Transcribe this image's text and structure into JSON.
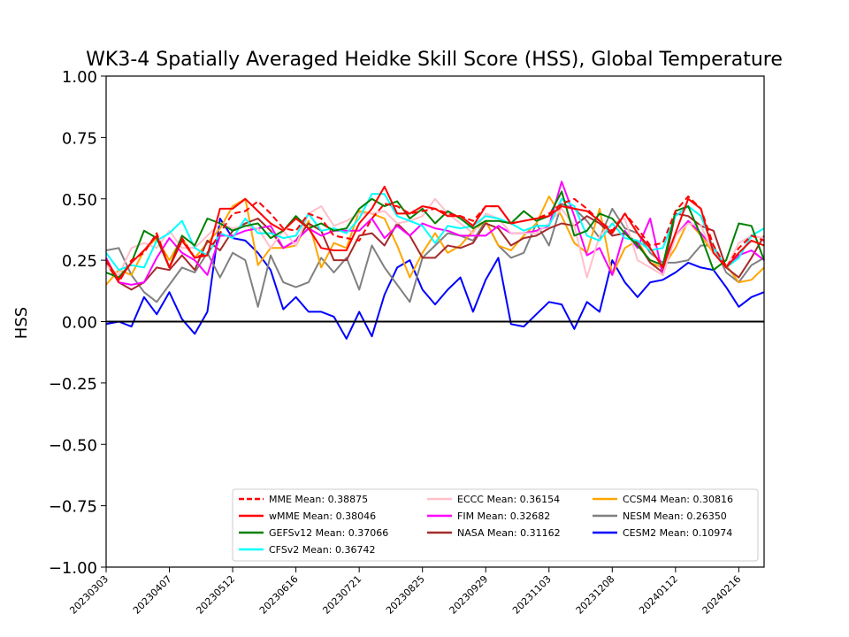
{
  "chart_data": {
    "type": "line",
    "title": "WK3-4 Spatially Averaged Heidke Skill Score (HSS), Global Temperature",
    "xlabel": "",
    "ylabel": "HSS",
    "ylim": [
      -1.0,
      1.0
    ],
    "yticks": [
      "1.00",
      "0.75",
      "0.50",
      "0.25",
      "0.00",
      "−0.25",
      "−0.50",
      "−0.75",
      "−1.00"
    ],
    "ytick_values": [
      1.0,
      0.75,
      0.5,
      0.25,
      0.0,
      -0.25,
      -0.5,
      -0.75,
      -1.0
    ],
    "xtick_labels": [
      "20230303",
      "20230407",
      "20230512",
      "20230616",
      "20230721",
      "20230825",
      "20230929",
      "20231103",
      "20231208",
      "20240112",
      "20240216"
    ],
    "xtick_index": [
      0,
      5,
      10,
      15,
      20,
      25,
      30,
      35,
      40,
      45,
      50
    ],
    "n_points": 53,
    "legend_location": "lower right",
    "legend_columns": 3,
    "grid": false,
    "series": [
      {
        "name": "MME Mean: 0.38875",
        "color": "#ff0000",
        "dashed": true,
        "width": 2,
        "values": [
          0.25,
          0.16,
          0.25,
          0.28,
          0.36,
          0.22,
          0.34,
          0.26,
          0.28,
          0.36,
          0.44,
          0.45,
          0.49,
          0.44,
          0.38,
          0.37,
          0.44,
          0.42,
          0.35,
          0.34,
          0.33,
          0.42,
          0.48,
          0.47,
          0.44,
          0.45,
          0.46,
          0.44,
          0.43,
          0.41,
          0.47,
          0.47,
          0.4,
          0.41,
          0.42,
          0.44,
          0.48,
          0.5,
          0.46,
          0.41,
          0.37,
          0.44,
          0.38,
          0.31,
          0.32,
          0.45,
          0.51,
          0.46,
          0.31,
          0.22,
          0.3,
          0.35,
          0.33
        ]
      },
      {
        "name": "wMME Mean: 0.38046",
        "color": "#ff0000",
        "dashed": false,
        "width": 2,
        "values": [
          0.25,
          0.17,
          0.24,
          0.29,
          0.35,
          0.22,
          0.33,
          0.26,
          0.27,
          0.46,
          0.46,
          0.5,
          0.45,
          0.4,
          0.37,
          0.42,
          0.38,
          0.3,
          0.29,
          0.29,
          0.4,
          0.46,
          0.55,
          0.44,
          0.44,
          0.47,
          0.46,
          0.43,
          0.43,
          0.39,
          0.47,
          0.47,
          0.4,
          0.41,
          0.42,
          0.43,
          0.47,
          0.46,
          0.45,
          0.41,
          0.36,
          0.44,
          0.36,
          0.3,
          0.22,
          0.36,
          0.5,
          0.46,
          0.28,
          0.22,
          0.28,
          0.33,
          0.31
        ]
      },
      {
        "name": "GEFSv12 Mean: 0.37066",
        "color": "#008000",
        "dashed": false,
        "width": 2,
        "values": [
          0.2,
          0.18,
          0.24,
          0.37,
          0.34,
          0.22,
          0.35,
          0.31,
          0.42,
          0.4,
          0.37,
          0.39,
          0.4,
          0.34,
          0.37,
          0.43,
          0.38,
          0.4,
          0.37,
          0.38,
          0.46,
          0.5,
          0.47,
          0.49,
          0.42,
          0.46,
          0.4,
          0.45,
          0.42,
          0.38,
          0.41,
          0.41,
          0.4,
          0.45,
          0.41,
          0.43,
          0.53,
          0.35,
          0.37,
          0.44,
          0.42,
          0.36,
          0.31,
          0.25,
          0.23,
          0.45,
          0.47,
          0.35,
          0.21,
          0.25,
          0.4,
          0.39,
          0.25
        ]
      },
      {
        "name": "CFSv2 Mean: 0.36742",
        "color": "#00ffff",
        "dashed": false,
        "width": 2,
        "values": [
          0.28,
          0.21,
          0.23,
          0.22,
          0.33,
          0.36,
          0.41,
          0.3,
          0.27,
          0.36,
          0.34,
          0.42,
          0.36,
          0.36,
          0.34,
          0.35,
          0.44,
          0.37,
          0.38,
          0.36,
          0.42,
          0.52,
          0.52,
          0.43,
          0.41,
          0.39,
          0.32,
          0.39,
          0.38,
          0.39,
          0.43,
          0.42,
          0.4,
          0.37,
          0.39,
          0.39,
          0.5,
          0.47,
          0.35,
          0.33,
          0.4,
          0.34,
          0.33,
          0.29,
          0.3,
          0.43,
          0.47,
          0.43,
          0.3,
          0.22,
          0.26,
          0.35,
          0.38
        ]
      },
      {
        "name": "ECCC Mean: 0.36154",
        "color": "#ffc0cb",
        "dashed": false,
        "width": 2,
        "values": [
          0.23,
          0.19,
          0.3,
          0.32,
          0.3,
          0.37,
          0.3,
          0.3,
          0.35,
          0.4,
          0.38,
          0.39,
          0.38,
          0.3,
          0.37,
          0.31,
          0.44,
          0.47,
          0.39,
          0.41,
          0.44,
          0.44,
          0.45,
          0.4,
          0.41,
          0.43,
          0.5,
          0.44,
          0.4,
          0.36,
          0.44,
          0.42,
          0.36,
          0.36,
          0.36,
          0.4,
          0.46,
          0.39,
          0.18,
          0.35,
          0.4,
          0.42,
          0.25,
          0.22,
          0.19,
          0.35,
          0.4,
          0.39,
          0.28,
          0.22,
          0.32,
          0.35,
          0.34
        ]
      },
      {
        "name": "FIM Mean: 0.32682",
        "color": "#ff00ff",
        "dashed": false,
        "width": 2,
        "values": [
          0.26,
          0.16,
          0.15,
          0.16,
          0.26,
          0.34,
          0.28,
          0.25,
          0.19,
          0.35,
          0.35,
          0.37,
          0.38,
          0.39,
          0.3,
          0.33,
          0.38,
          0.35,
          0.37,
          0.37,
          0.37,
          0.42,
          0.34,
          0.39,
          0.35,
          0.4,
          0.38,
          0.37,
          0.35,
          0.35,
          0.35,
          0.39,
          0.36,
          0.36,
          0.37,
          0.39,
          0.57,
          0.43,
          0.27,
          0.3,
          0.19,
          0.37,
          0.3,
          0.42,
          0.19,
          0.35,
          0.41,
          0.36,
          0.3,
          0.22,
          0.27,
          0.29,
          0.25
        ]
      },
      {
        "name": "NASA Mean: 0.31162",
        "color": "#a52a2a",
        "dashed": false,
        "width": 2,
        "values": [
          0.24,
          0.16,
          0.13,
          0.16,
          0.22,
          0.21,
          0.27,
          0.21,
          0.33,
          0.29,
          0.37,
          0.4,
          0.42,
          0.37,
          0.3,
          0.33,
          0.4,
          0.37,
          0.25,
          0.25,
          0.35,
          0.36,
          0.31,
          0.4,
          0.35,
          0.26,
          0.26,
          0.31,
          0.3,
          0.32,
          0.4,
          0.38,
          0.31,
          0.34,
          0.35,
          0.38,
          0.4,
          0.39,
          0.43,
          0.4,
          0.35,
          0.36,
          0.32,
          0.24,
          0.2,
          0.44,
          0.43,
          0.39,
          0.37,
          0.22,
          0.18,
          0.26,
          0.35
        ]
      },
      {
        "name": "CCSM4 Mean: 0.30816",
        "color": "#ffa500",
        "dashed": false,
        "width": 2,
        "values": [
          0.15,
          0.21,
          0.19,
          0.29,
          0.34,
          0.25,
          0.34,
          0.26,
          0.32,
          0.38,
          0.47,
          0.5,
          0.23,
          0.3,
          0.3,
          0.31,
          0.41,
          0.22,
          0.32,
          0.3,
          0.45,
          0.44,
          0.42,
          0.31,
          0.18,
          0.28,
          0.36,
          0.28,
          0.31,
          0.37,
          0.41,
          0.31,
          0.29,
          0.35,
          0.4,
          0.51,
          0.43,
          0.32,
          0.28,
          0.46,
          0.19,
          0.3,
          0.33,
          0.24,
          0.22,
          0.3,
          0.41,
          0.35,
          0.28,
          0.23,
          0.16,
          0.17,
          0.22
        ]
      },
      {
        "name": "NESM Mean: 0.26350",
        "color": "#808080",
        "dashed": false,
        "width": 2,
        "values": [
          0.29,
          0.3,
          0.19,
          0.12,
          0.08,
          0.15,
          0.22,
          0.2,
          0.28,
          0.18,
          0.28,
          0.25,
          0.06,
          0.27,
          0.16,
          0.14,
          0.16,
          0.26,
          0.2,
          0.26,
          0.13,
          0.31,
          0.22,
          0.15,
          0.08,
          0.26,
          0.31,
          0.36,
          0.35,
          0.33,
          0.41,
          0.31,
          0.26,
          0.28,
          0.4,
          0.31,
          0.48,
          0.46,
          0.41,
          0.34,
          0.46,
          0.38,
          0.36,
          0.28,
          0.24,
          0.24,
          0.25,
          0.31,
          0.31,
          0.2,
          0.16,
          0.23,
          0.26
        ]
      },
      {
        "name": "CESM2 Mean: 0.10974",
        "color": "#0000ff",
        "dashed": false,
        "width": 2,
        "values": [
          -0.01,
          0.0,
          -0.02,
          0.1,
          0.03,
          0.12,
          0.01,
          -0.05,
          0.04,
          0.42,
          0.34,
          0.33,
          0.28,
          0.21,
          0.05,
          0.1,
          0.04,
          0.04,
          0.02,
          -0.07,
          0.04,
          -0.06,
          0.11,
          0.22,
          0.25,
          0.13,
          0.07,
          0.13,
          0.18,
          0.04,
          0.17,
          0.26,
          -0.01,
          -0.02,
          0.03,
          0.08,
          0.07,
          -0.03,
          0.08,
          0.04,
          0.25,
          0.16,
          0.1,
          0.16,
          0.17,
          0.2,
          0.24,
          0.22,
          0.21,
          0.14,
          0.06,
          0.1,
          0.12
        ]
      }
    ]
  }
}
